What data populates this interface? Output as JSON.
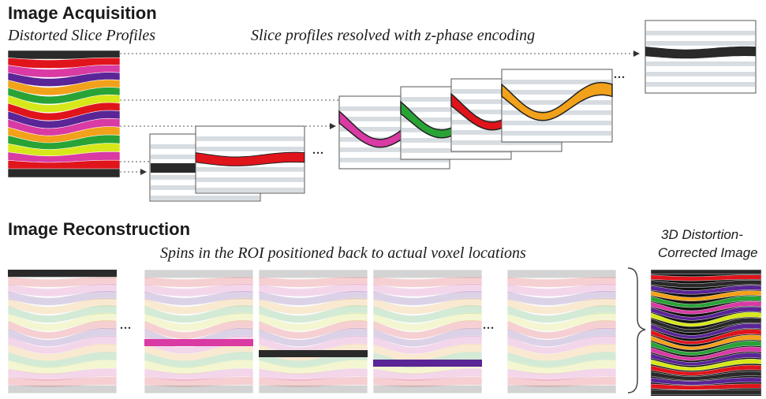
{
  "acquisition": {
    "heading": "Image Acquisition",
    "left_label": "Distorted Slice Profiles",
    "center_label": "Slice profiles resolved with z-phase encoding"
  },
  "reconstruction": {
    "heading": "Image Reconstruction",
    "center_label": "Spins in the ROI positioned back to actual voxel locations",
    "result_label_line1": "3D Distortion-",
    "result_label_line2": "Corrected Image"
  },
  "ellipsis": "...",
  "colors": {
    "black": "#2a2a2a",
    "red": "#e0141b",
    "magenta": "#d93aa4",
    "purple": "#5a2596",
    "orange": "#f2a11a",
    "green": "#29a336",
    "yellow": "#d7e81a",
    "lightgray": "#d7dce1"
  }
}
